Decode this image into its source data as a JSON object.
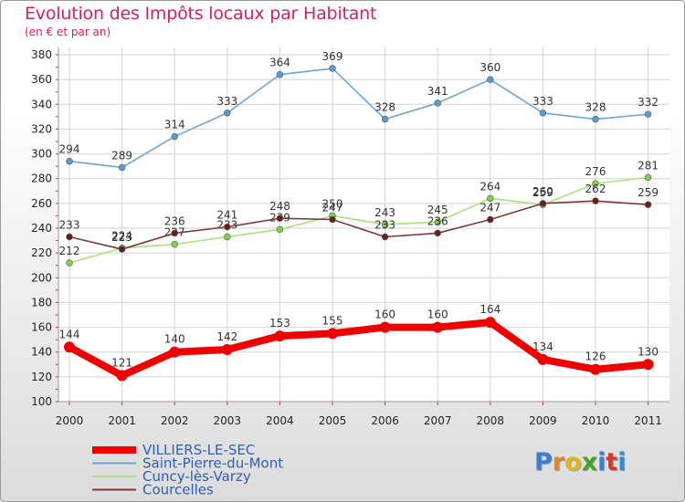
{
  "title": "Evolution des Impôts locaux par Habitant",
  "subtitle": "(en € et par an)",
  "logo": {
    "letters": [
      "P",
      "r",
      "o",
      "x",
      "i",
      "t",
      "i"
    ],
    "colors": [
      "#3b7fd1",
      "#e28a1f",
      "#e0b81c",
      "#4aa32a",
      "#3b7fd1",
      "#d13a2f",
      "#2e8fcf"
    ]
  },
  "chart_data": {
    "type": "line",
    "title": "Evolution des Impôts locaux par Habitant",
    "subtitle": "(en € et par an)",
    "x": [
      "2000",
      "2001",
      "2002",
      "2003",
      "2004",
      "2005",
      "2006",
      "2007",
      "2008",
      "2009",
      "2010",
      "2011"
    ],
    "ylim": [
      100,
      380
    ],
    "yticks": [
      100,
      120,
      140,
      160,
      180,
      200,
      220,
      240,
      260,
      280,
      300,
      320,
      340,
      360,
      380
    ],
    "grid": true,
    "legend": "bottom-left",
    "series": [
      {
        "name": "Saint-Pierre-du-Mont",
        "color": "#5b9bd0",
        "line_color": "#6fa5d3",
        "values": [
          294,
          289,
          314,
          333,
          364,
          369,
          328,
          341,
          360,
          333,
          328,
          332
        ]
      },
      {
        "name": "Cuncy-lès-Varzy",
        "color": "#7ed24a",
        "line_color": "#a8e07c",
        "values": [
          212,
          224,
          227,
          233,
          239,
          250,
          243,
          245,
          264,
          259,
          276,
          281
        ]
      },
      {
        "name": "Courcelles",
        "color": "#6b1e1e",
        "line_color": "#7a3a3a",
        "values": [
          233,
          223,
          236,
          241,
          248,
          247,
          233,
          236,
          247,
          260,
          262,
          259
        ]
      },
      {
        "name": "VILLIERS-LE-SEC",
        "color": "#ee0000",
        "line_color": "#ee0000",
        "values": [
          144,
          121,
          140,
          142,
          153,
          155,
          160,
          160,
          164,
          134,
          126,
          130
        ]
      }
    ]
  }
}
